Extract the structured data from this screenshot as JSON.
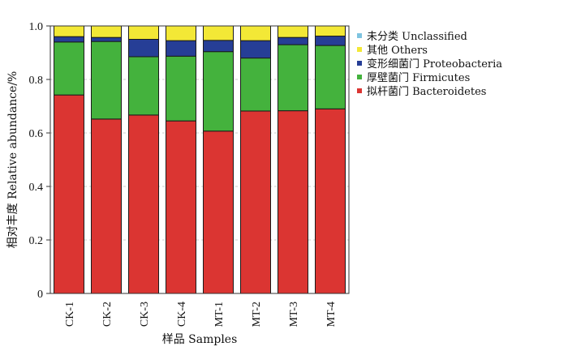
{
  "chart_data": {
    "type": "bar",
    "stacked": true,
    "categories": [
      "CK-1",
      "CK-2",
      "CK-3",
      "CK-4",
      "MT-1",
      "MT-2",
      "MT-3",
      "MT-4"
    ],
    "series": [
      {
        "name": "拟杆菌门 Bacteroidetes",
        "color": "#db3532",
        "values": [
          0.742,
          0.652,
          0.667,
          0.645,
          0.607,
          0.682,
          0.683,
          0.69
        ]
      },
      {
        "name": "厚壁菌门 Firmicutes",
        "color": "#44b23d",
        "values": [
          0.198,
          0.29,
          0.218,
          0.242,
          0.297,
          0.198,
          0.247,
          0.237
        ]
      },
      {
        "name": "变形细菌门 Proteobacteria",
        "color": "#263e96",
        "values": [
          0.02,
          0.015,
          0.065,
          0.058,
          0.042,
          0.065,
          0.027,
          0.035
        ]
      },
      {
        "name": "其他 Others",
        "color": "#f3e836",
        "values": [
          0.04,
          0.043,
          0.05,
          0.055,
          0.054,
          0.055,
          0.043,
          0.038
        ]
      },
      {
        "name": "未分类 Unclassified",
        "color": "#7fc4e0",
        "values": [
          0.0,
          0.0,
          0.0,
          0.0,
          0.0,
          0.0,
          0.0,
          0.0
        ]
      }
    ],
    "legend_order": [
      "未分类 Unclassified",
      "其他 Others",
      "变形细菌门 Proteobacteria",
      "厚壁菌门 Firmicutes",
      "拟杆菌门 Bacteroidetes"
    ],
    "xlabel": "样品 Samples",
    "ylabel": "相对丰度 Relative abundance/%",
    "ylim": [
      0,
      1.0
    ],
    "yticks": [
      "0",
      "0.2",
      "0.4",
      "0.6",
      "0.8",
      "1.0"
    ],
    "grid": true,
    "legend_position": "right"
  }
}
